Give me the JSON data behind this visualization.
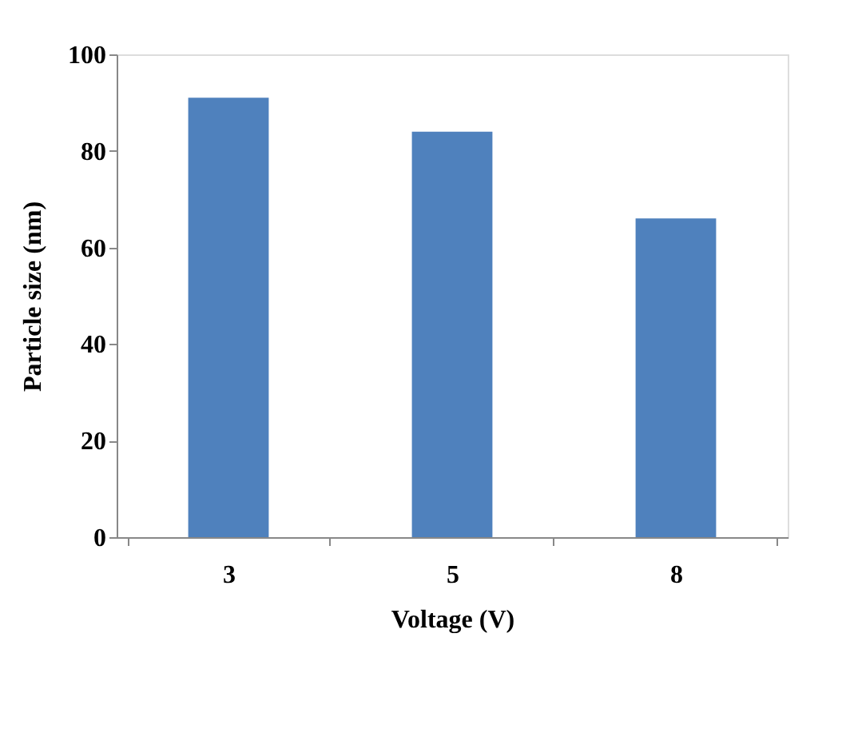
{
  "chart_data": {
    "type": "bar",
    "xlabel": "Voltage (V)",
    "ylabel": "Particle size (nm)",
    "categories": [
      "3",
      "5",
      "8"
    ],
    "values": [
      91,
      84,
      66
    ],
    "color": "#4f81bd",
    "ylim": [
      0,
      100
    ],
    "yticks": [
      0,
      20,
      40,
      60,
      80,
      100
    ],
    "grid": false
  }
}
